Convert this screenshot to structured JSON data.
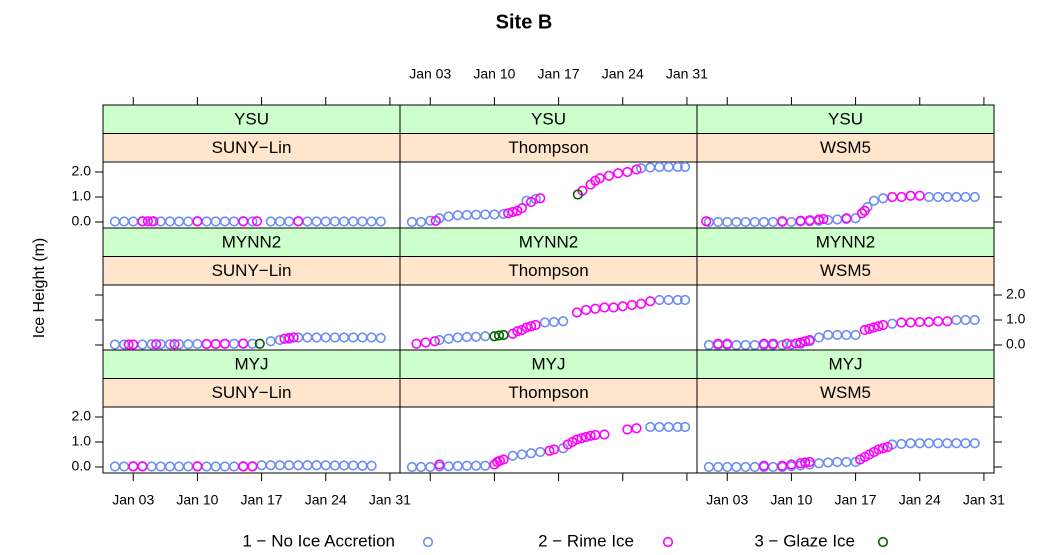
{
  "chart_data": {
    "type": "scatter",
    "title": "Site B",
    "ylabel": "Ice Height (m)",
    "xlim": [
      -0.3,
      32.1
    ],
    "ylim": [
      -0.24,
      2.4
    ],
    "xticks": [
      {
        "value": 3,
        "label": "Jan 03"
      },
      {
        "value": 10,
        "label": "Jan 10"
      },
      {
        "value": 17,
        "label": "Jan 17"
      },
      {
        "value": 24,
        "label": "Jan 24"
      },
      {
        "value": 31,
        "label": "Jan 31"
      }
    ],
    "yticks": [
      {
        "value": 0,
        "label": "0.0"
      },
      {
        "value": 1,
        "label": "1.0"
      },
      {
        "value": 2,
        "label": "2.0"
      }
    ],
    "strip_colors": [
      "#ccffcc",
      "#ffe5cc"
    ],
    "legend": [
      {
        "name": "1 − No Ice Accretion",
        "color": "#6b8ef0"
      },
      {
        "name": "2 − Rime Ice",
        "color": "#ff00ff"
      },
      {
        "name": "3 − Glaze Ice",
        "color": "#006400"
      }
    ],
    "panels": [
      {
        "strips": [
          "YSU",
          "SUNY−Lin"
        ],
        "series": [
          {
            "x": [
              1,
              2,
              3,
              4,
              5,
              6,
              7,
              8,
              9,
              10,
              11,
              12,
              13,
              14,
              15,
              16,
              18,
              19,
              20,
              21,
              22,
              23,
              24,
              25,
              26,
              27,
              28,
              29,
              30
            ],
            "values": [
              0.02,
              0.02,
              0.02,
              0.02,
              0.02,
              0.02,
              0.02,
              0.02,
              0.02,
              0.02,
              0.02,
              0.02,
              0.02,
              0.02,
              0.02,
              0.02,
              0.02,
              0.02,
              0.02,
              0.02,
              0.02,
              0.02,
              0.02,
              0.02,
              0.02,
              0.02,
              0.02,
              0.02,
              0.02
            ]
          },
          {
            "x": [
              4,
              4.6,
              5.2,
              10,
              15,
              16.5,
              21
            ],
            "values": [
              0.03,
              0.03,
              0.03,
              0.03,
              0.03,
              0.03,
              0.03
            ]
          },
          {
            "x": [],
            "values": []
          }
        ]
      },
      {
        "strips": [
          "YSU",
          "Thompson"
        ],
        "series": [
          {
            "x": [
              1,
              2,
              3,
              4,
              5,
              6,
              7,
              8,
              9,
              10,
              11,
              13.5,
              14.5,
              26,
              27,
              28,
              29,
              30,
              30.8
            ],
            "values": [
              0,
              0,
              0.05,
              0.15,
              0.22,
              0.27,
              0.28,
              0.29,
              0.3,
              0.3,
              0.32,
              0.85,
              0.92,
              2.15,
              2.18,
              2.2,
              2.2,
              2.2,
              2.2
            ]
          },
          {
            "x": [
              3.6,
              11.5,
              12,
              12.5,
              13,
              14,
              15,
              19.6,
              20.5,
              21,
              21.5,
              22.5,
              23.5,
              24.5,
              25.5
            ],
            "values": [
              0.05,
              0.35,
              0.4,
              0.45,
              0.55,
              0.8,
              0.95,
              1.25,
              1.5,
              1.65,
              1.75,
              1.85,
              1.95,
              2.0,
              2.1
            ]
          },
          {
            "x": [
              19.1
            ],
            "values": [
              1.1
            ]
          }
        ]
      },
      {
        "strips": [
          "YSU",
          "WSM5"
        ],
        "series": [
          {
            "x": [
              1,
              2,
              3,
              4,
              5,
              6,
              7,
              8,
              9,
              10,
              11,
              12,
              13,
              14,
              15,
              16,
              17,
              18.3,
              19,
              20,
              25,
              26,
              27,
              28,
              29,
              30
            ],
            "values": [
              0,
              0,
              0,
              0,
              0,
              0,
              0,
              0,
              0,
              0,
              0.02,
              0.03,
              0.05,
              0.08,
              0.1,
              0.12,
              0.15,
              0.6,
              0.85,
              0.95,
              1.0,
              1.0,
              1.0,
              1.0,
              1.0,
              1.0
            ]
          },
          {
            "x": [
              0.7,
              9,
              11,
              12,
              13,
              13.5,
              16,
              17.7,
              18,
              21,
              22,
              23,
              24
            ],
            "values": [
              0.03,
              0.03,
              0.05,
              0.07,
              0.1,
              0.12,
              0.15,
              0.35,
              0.45,
              1.0,
              1.0,
              1.05,
              1.05
            ]
          },
          {
            "x": [],
            "values": []
          }
        ]
      },
      {
        "strips": [
          "MYNN2",
          "SUNY−Lin"
        ],
        "series": [
          {
            "x": [
              1,
              2,
              3,
              4,
              5,
              6,
              7,
              8,
              9,
              10,
              11,
              12,
              13,
              14,
              15,
              16,
              18,
              19,
              20,
              21,
              22,
              23,
              24,
              25,
              26,
              27,
              28,
              29,
              30
            ],
            "values": [
              0.02,
              0.02,
              0.02,
              0.02,
              0.03,
              0.03,
              0.03,
              0.03,
              0.03,
              0.04,
              0.04,
              0.04,
              0.05,
              0.05,
              0.05,
              0.05,
              0.15,
              0.2,
              0.25,
              0.3,
              0.3,
              0.3,
              0.3,
              0.3,
              0.3,
              0.3,
              0.3,
              0.3,
              0.28
            ]
          },
          {
            "x": [
              2.5,
              3,
              5.5,
              7.5,
              11,
              12,
              13,
              15,
              19.5,
              20,
              20.5
            ],
            "values": [
              0.02,
              0.02,
              0.03,
              0.03,
              0.04,
              0.04,
              0.05,
              0.06,
              0.25,
              0.28,
              0.3
            ]
          },
          {
            "x": [
              16.8
            ],
            "values": [
              0.05
            ]
          }
        ]
      },
      {
        "strips": [
          "MYNN2",
          "Thompson"
        ],
        "series": [
          {
            "x": [
              4,
              5,
              6,
              7,
              8,
              9,
              15.5,
              16.5,
              17.5,
              28,
              29,
              30,
              30.8
            ],
            "values": [
              0.2,
              0.25,
              0.3,
              0.32,
              0.33,
              0.35,
              0.9,
              0.92,
              0.95,
              1.8,
              1.8,
              1.8,
              1.8
            ]
          },
          {
            "x": [
              1.5,
              2.5,
              3.5,
              12,
              12.5,
              13,
              13.5,
              14,
              14.5,
              19,
              20,
              21,
              22,
              23,
              24,
              25,
              26,
              27
            ],
            "values": [
              0.05,
              0.1,
              0.15,
              0.45,
              0.55,
              0.6,
              0.7,
              0.75,
              0.8,
              1.3,
              1.4,
              1.45,
              1.5,
              1.5,
              1.55,
              1.6,
              1.65,
              1.75
            ]
          },
          {
            "x": [
              10,
              10.5,
              11
            ],
            "values": [
              0.35,
              0.38,
              0.4
            ]
          }
        ]
      },
      {
        "strips": [
          "MYNN2",
          "WSM5"
        ],
        "series": [
          {
            "x": [
              1,
              2,
              3,
              4,
              5,
              6,
              7,
              8,
              9,
              10,
              11,
              12,
              13,
              14,
              15,
              16,
              17,
              21,
              28,
              29,
              30
            ],
            "values": [
              0,
              0,
              0,
              0,
              0,
              0,
              0,
              0,
              0,
              0.02,
              0.05,
              0.15,
              0.3,
              0.4,
              0.4,
              0.4,
              0.4,
              0.85,
              1.0,
              1.0,
              1.0
            ]
          },
          {
            "x": [
              2,
              3,
              7,
              8,
              9.5,
              10.5,
              11,
              11.5,
              12,
              18,
              18.5,
              19,
              19.5,
              20,
              22,
              23,
              24,
              25,
              26,
              27
            ],
            "values": [
              0.05,
              0.05,
              0.05,
              0.05,
              0.05,
              0.06,
              0.1,
              0.15,
              0.2,
              0.6,
              0.65,
              0.7,
              0.75,
              0.8,
              0.9,
              0.9,
              0.92,
              0.92,
              0.95,
              0.95
            ]
          },
          {
            "x": [],
            "values": []
          }
        ]
      },
      {
        "strips": [
          "MYJ",
          "SUNY−Lin"
        ],
        "series": [
          {
            "x": [
              1,
              2,
              3,
              4,
              5,
              6,
              7,
              8,
              9,
              10,
              11,
              12,
              13,
              14,
              15,
              16,
              17,
              18,
              19,
              20,
              21,
              22,
              23,
              24,
              25,
              26,
              27,
              28,
              29
            ],
            "values": [
              0.02,
              0.02,
              0.02,
              0.02,
              0.02,
              0.02,
              0.02,
              0.02,
              0.02,
              0.02,
              0.02,
              0.02,
              0.02,
              0.02,
              0.02,
              0.02,
              0.07,
              0.07,
              0.07,
              0.07,
              0.07,
              0.07,
              0.07,
              0.07,
              0.06,
              0.06,
              0.06,
              0.05,
              0.05
            ]
          },
          {
            "x": [
              3,
              4,
              10,
              15,
              16
            ],
            "values": [
              0.03,
              0.03,
              0.03,
              0.03,
              0.03
            ]
          },
          {
            "x": [],
            "values": []
          }
        ]
      },
      {
        "strips": [
          "MYJ",
          "Thompson"
        ],
        "series": [
          {
            "x": [
              1,
              2,
              3,
              4,
              5,
              6,
              7,
              8,
              9,
              12,
              13,
              14,
              15,
              17.5,
              27,
              28,
              29,
              30,
              30.8
            ],
            "values": [
              0,
              0,
              0,
              0.02,
              0.03,
              0.04,
              0.05,
              0.05,
              0.05,
              0.45,
              0.5,
              0.55,
              0.6,
              0.75,
              1.6,
              1.6,
              1.6,
              1.6,
              1.6
            ]
          },
          {
            "x": [
              4,
              10,
              10.3,
              10.6,
              11,
              16,
              16.5,
              18,
              18.5,
              19,
              19.5,
              20,
              20.5,
              21,
              22,
              24.5,
              25.5
            ],
            "values": [
              0.1,
              0.1,
              0.2,
              0.25,
              0.3,
              0.65,
              0.7,
              0.9,
              1.0,
              1.1,
              1.15,
              1.2,
              1.25,
              1.28,
              1.3,
              1.5,
              1.55
            ]
          },
          {
            "x": [],
            "values": []
          }
        ]
      },
      {
        "strips": [
          "MYJ",
          "WSM5"
        ],
        "series": [
          {
            "x": [
              1,
              2,
              3,
              4,
              5,
              6,
              7,
              8,
              9,
              10,
              11,
              12,
              13,
              14,
              15,
              16,
              17,
              21,
              22,
              23,
              24,
              25,
              26,
              27,
              28,
              29,
              30
            ],
            "values": [
              0,
              0,
              0,
              0,
              0,
              0,
              0,
              0,
              0,
              0.03,
              0.06,
              0.1,
              0.15,
              0.18,
              0.2,
              0.2,
              0.2,
              0.9,
              0.92,
              0.95,
              0.95,
              0.95,
              0.95,
              0.95,
              0.95,
              0.95,
              0.95
            ]
          },
          {
            "x": [
              7,
              9,
              10,
              11,
              11.5,
              12,
              17.5,
              18,
              18.5,
              19,
              19.5,
              20,
              20.5
            ],
            "values": [
              0.05,
              0.05,
              0.1,
              0.15,
              0.18,
              0.2,
              0.3,
              0.4,
              0.5,
              0.6,
              0.7,
              0.75,
              0.8
            ]
          },
          {
            "x": [],
            "values": []
          }
        ]
      }
    ]
  }
}
